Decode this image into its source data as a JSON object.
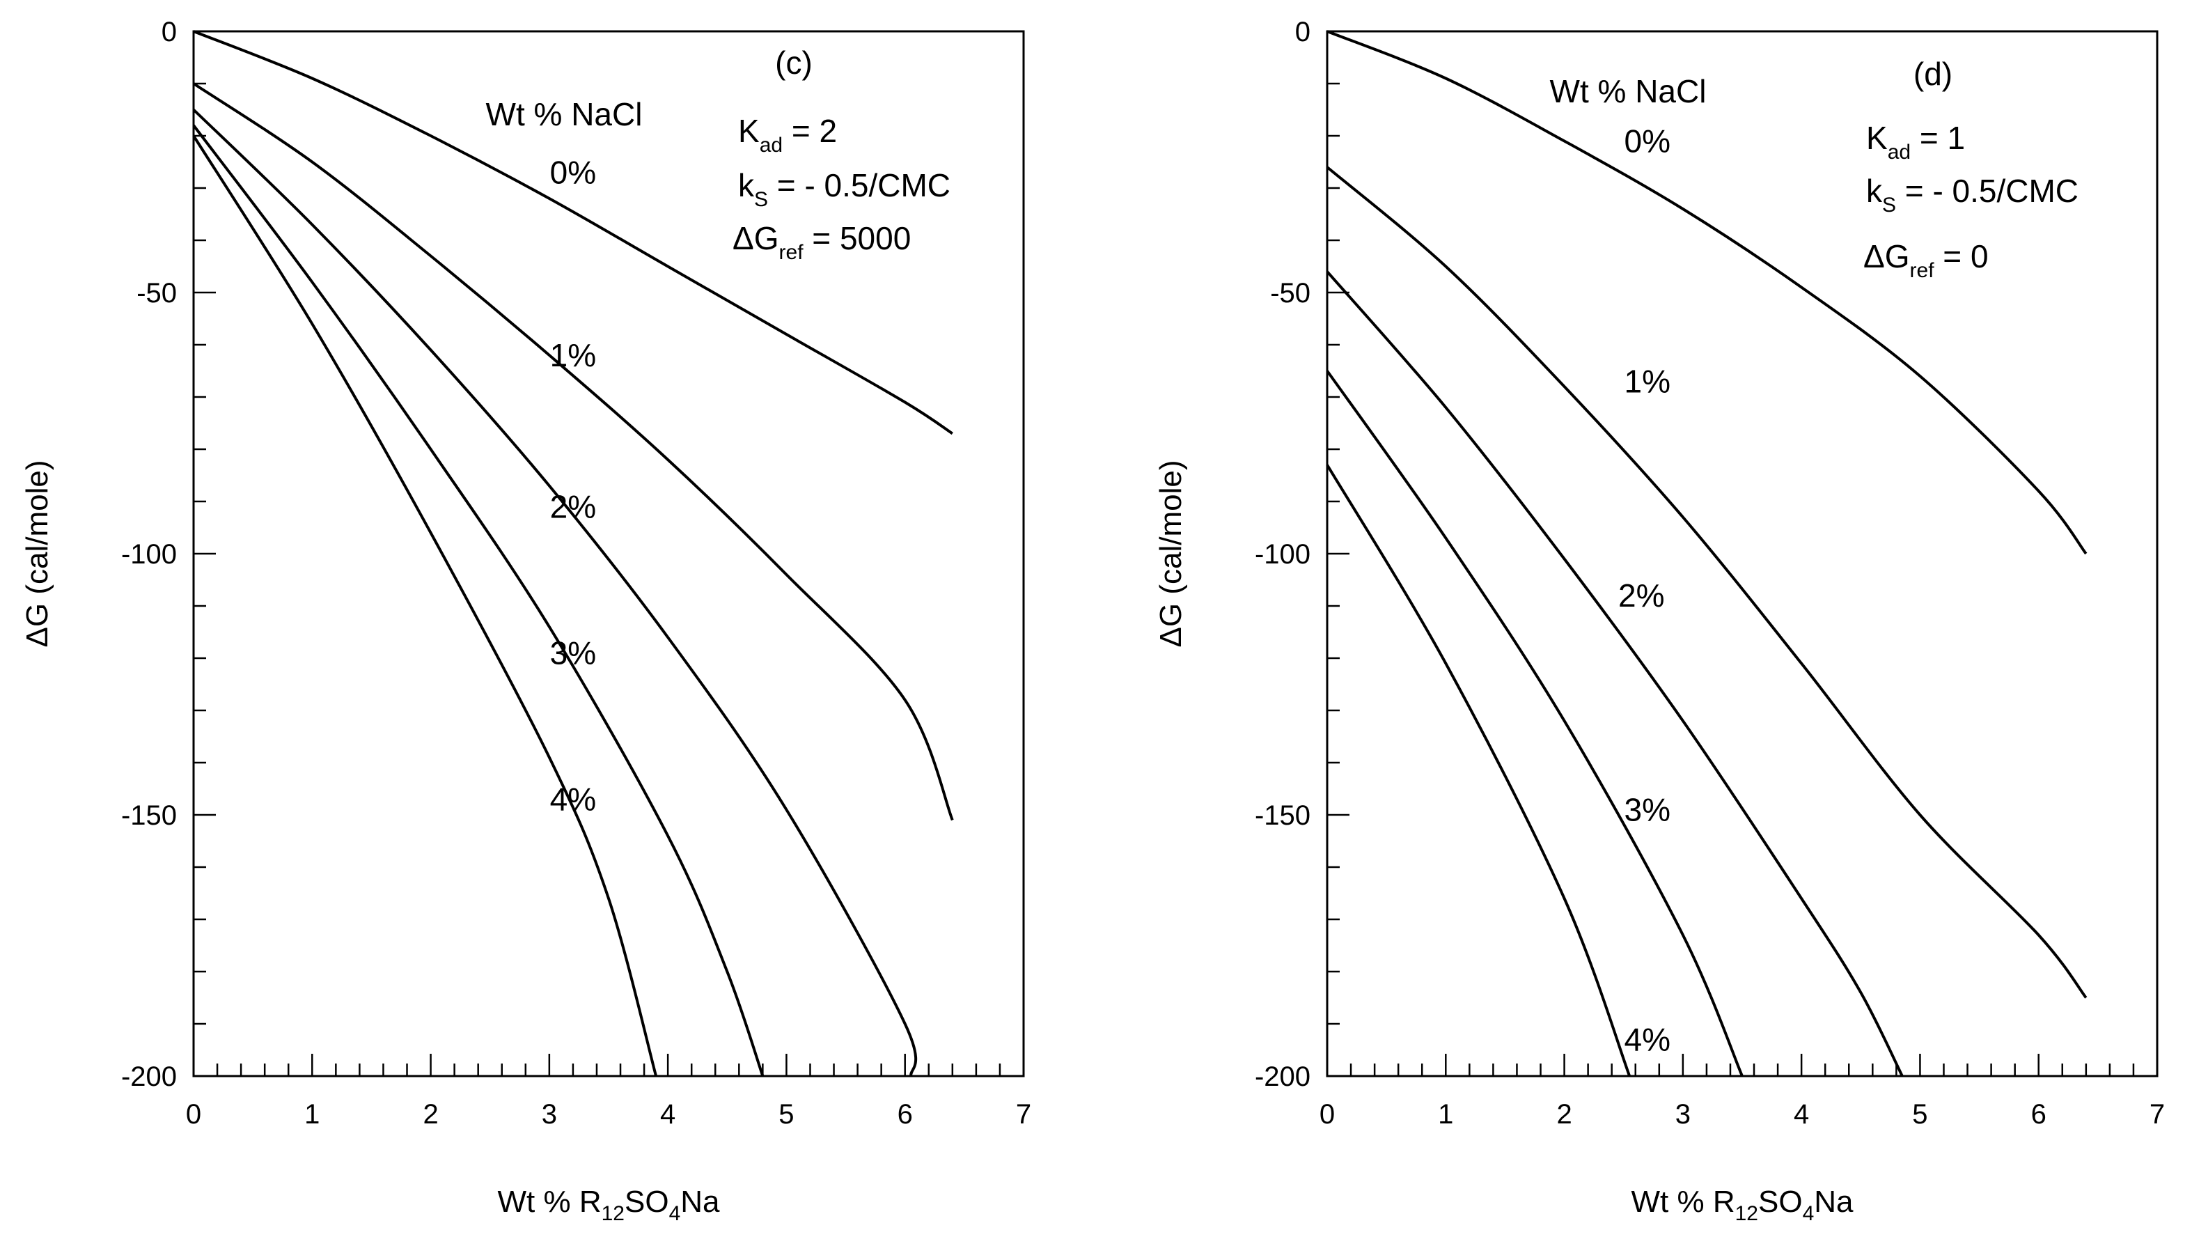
{
  "chart_data": [
    {
      "type": "line",
      "panel_label": "(c)",
      "xlabel": {
        "main": "Wt % R",
        "sub1": "12",
        "mid": "SO",
        "sub2": "4",
        "tail": "Na"
      },
      "ylabel": "ΔG (cal/mole)",
      "xlim": [
        0,
        7
      ],
      "ylim": [
        -200,
        0
      ],
      "xticks": [
        0,
        1,
        2,
        3,
        4,
        5,
        6,
        7
      ],
      "yticks": [
        0,
        -50,
        -100,
        -150,
        -200
      ],
      "legend_title": "Wt % NaCl",
      "params": [
        {
          "base": "K",
          "sub": "ad",
          "rest": " = 2"
        },
        {
          "base": "k",
          "sub": "S",
          "rest": "   = - 0.5/CMC"
        },
        {
          "base": "ΔG",
          "sub": "ref",
          "rest": " = 5000"
        }
      ],
      "series": [
        {
          "name": "0%",
          "x": [
            0,
            1,
            2,
            3,
            4,
            5,
            6,
            6.4
          ],
          "y": [
            0,
            -9,
            -20,
            -32,
            -45,
            -58,
            -71,
            -77
          ]
        },
        {
          "name": "1%",
          "x": [
            0,
            1,
            2,
            3,
            4,
            5,
            6,
            6.4
          ],
          "y": [
            -10,
            -25,
            -43,
            -62,
            -82,
            -104,
            -128,
            -151
          ]
        },
        {
          "name": "2%",
          "x": [
            0,
            1,
            2,
            3,
            4,
            5,
            6,
            6.05
          ],
          "y": [
            -15,
            -37,
            -61,
            -87,
            -116,
            -149,
            -190,
            -200
          ]
        },
        {
          "name": "3%",
          "x": [
            0,
            1,
            2,
            3,
            4,
            4.5,
            4.8
          ],
          "y": [
            -18,
            -48,
            -80,
            -114,
            -154,
            -180,
            -200
          ]
        },
        {
          "name": "4%",
          "x": [
            0,
            1,
            2,
            3,
            3.5,
            3.9
          ],
          "y": [
            -20,
            -56,
            -96,
            -139,
            -166,
            -200
          ]
        }
      ]
    },
    {
      "type": "line",
      "panel_label": "(d)",
      "xlabel": {
        "main": "Wt % R",
        "sub1": "12",
        "mid": "SO",
        "sub2": "4",
        "tail": "Na"
      },
      "ylabel": "ΔG (cal/mole)",
      "xlim": [
        0,
        7
      ],
      "ylim": [
        -200,
        0
      ],
      "xticks": [
        0,
        1,
        2,
        3,
        4,
        5,
        6,
        7
      ],
      "yticks": [
        0,
        -50,
        -100,
        -150,
        -200
      ],
      "legend_title": "Wt % NaCl",
      "params": [
        {
          "base": "K",
          "sub": "ad",
          "rest": " = 1"
        },
        {
          "base": "k",
          "sub": "S",
          "rest": "   = - 0.5/CMC"
        },
        {
          "base": "ΔG",
          "sub": "ref",
          "rest": " = 0"
        }
      ],
      "series": [
        {
          "name": "0%",
          "x": [
            0,
            1,
            2,
            3,
            4,
            5,
            6,
            6.4
          ],
          "y": [
            0,
            -9,
            -21,
            -34,
            -49,
            -66,
            -88,
            -100
          ]
        },
        {
          "name": "1%",
          "x": [
            0,
            1,
            2,
            3,
            4,
            5,
            6,
            6.4
          ],
          "y": [
            -26,
            -45,
            -68,
            -93,
            -121,
            -150,
            -173,
            -185
          ]
        },
        {
          "name": "2%",
          "x": [
            0,
            1,
            2,
            3,
            4,
            4.5,
            4.85
          ],
          "y": [
            -46,
            -72,
            -101,
            -132,
            -166,
            -184,
            -200
          ]
        },
        {
          "name": "3%",
          "x": [
            0,
            1,
            2,
            3,
            3.5
          ],
          "y": [
            -65,
            -97,
            -132,
            -173,
            -200
          ]
        },
        {
          "name": "4%",
          "x": [
            0,
            1,
            2,
            2.55
          ],
          "y": [
            -83,
            -121,
            -166,
            -200
          ]
        }
      ]
    }
  ],
  "curve_labels": [
    [
      {
        "name": "0%",
        "x": 3.2,
        "y": -27
      },
      {
        "name": "1%",
        "x": 3.2,
        "y": -62
      },
      {
        "name": "2%",
        "x": 3.2,
        "y": -91
      },
      {
        "name": "3%",
        "x": 3.2,
        "y": -119
      },
      {
        "name": "4%",
        "x": 3.2,
        "y": -147
      }
    ],
    [
      {
        "name": "0%",
        "x": 2.7,
        "y": -21
      },
      {
        "name": "1%",
        "x": 2.7,
        "y": -67
      },
      {
        "name": "2%",
        "x": 2.65,
        "y": -108
      },
      {
        "name": "3%",
        "x": 2.7,
        "y": -149
      },
      {
        "name": "4%",
        "x": 2.7,
        "y": -193
      }
    ]
  ]
}
